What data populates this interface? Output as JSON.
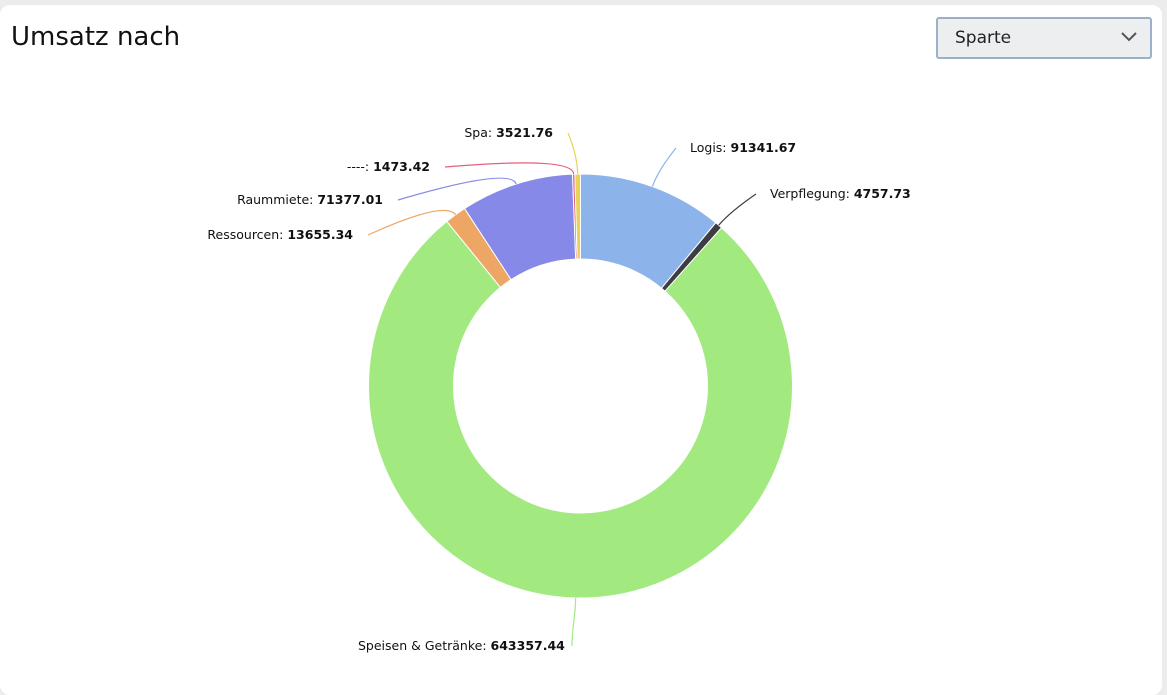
{
  "header": {
    "title": "Umsatz nach"
  },
  "filter": {
    "selected": "Sparte"
  },
  "chart_data": {
    "type": "pie",
    "donut": true,
    "title": "",
    "slices": [
      {
        "label": "Logis",
        "value": 91341.67,
        "color": "#8db4ea"
      },
      {
        "label": "Verpflegung",
        "value": 4757.73,
        "color": "#3d3d44"
      },
      {
        "label": "Speisen & Getränke",
        "value": 643357.44,
        "color": "#a2e980"
      },
      {
        "label": "Ressourcen",
        "value": 13655.34,
        "color": "#eea664"
      },
      {
        "label": "Raummiete",
        "value": 71377.01,
        "color": "#8789e8"
      },
      {
        "label": "----",
        "value": 1473.42,
        "color": "#e65f7b"
      },
      {
        "label": "Spa",
        "value": 3521.76,
        "color": "#e8d35a"
      }
    ]
  }
}
